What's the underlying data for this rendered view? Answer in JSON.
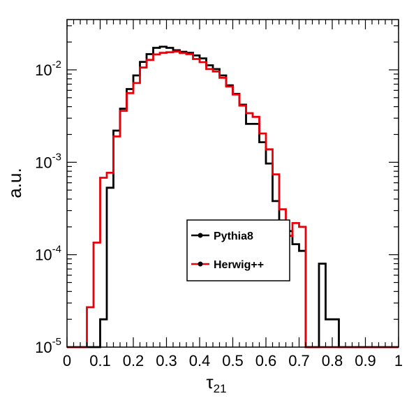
{
  "chart_data": {
    "type": "line",
    "style": "step-histogram",
    "title": "",
    "xlabel": "τ",
    "xlabel_subscript": "21",
    "ylabel": "a.u.",
    "xlim": [
      0,
      1
    ],
    "ylim": [
      1e-05,
      0.035
    ],
    "yscale": "log",
    "grid": false,
    "legend_position": "center",
    "x_ticks": [
      "0",
      "0.1",
      "0.2",
      "0.3",
      "0.4",
      "0.5",
      "0.6",
      "0.7",
      "0.8",
      "0.9",
      "1"
    ],
    "y_ticks": [
      {
        "base": "10",
        "exp": "-5"
      },
      {
        "base": "10",
        "exp": "-4"
      },
      {
        "base": "10",
        "exp": "-3"
      },
      {
        "base": "10",
        "exp": "-2"
      }
    ],
    "bin_edges": [
      0.0,
      0.02,
      0.04,
      0.06,
      0.08,
      0.1,
      0.12,
      0.14,
      0.16,
      0.18,
      0.2,
      0.22,
      0.24,
      0.26,
      0.28,
      0.3,
      0.32,
      0.34,
      0.36,
      0.38,
      0.4,
      0.42,
      0.44,
      0.46,
      0.48,
      0.5,
      0.52,
      0.54,
      0.56,
      0.58,
      0.6,
      0.62,
      0.64,
      0.66,
      0.68,
      0.7,
      0.72,
      0.74,
      0.76,
      0.78,
      0.8,
      0.82,
      0.84,
      0.86,
      0.88,
      0.9,
      0.92,
      0.94,
      0.96,
      0.98,
      1.0
    ],
    "series": [
      {
        "name": "Pythia8",
        "color": "#000000",
        "values": [
          1e-05,
          1e-05,
          1e-05,
          1e-05,
          1e-05,
          2e-05,
          0.00053,
          0.0022,
          0.0038,
          0.0062,
          0.0087,
          0.0122,
          0.0148,
          0.0173,
          0.0178,
          0.0173,
          0.0163,
          0.0157,
          0.0153,
          0.0143,
          0.0133,
          0.0112,
          0.0102,
          0.0087,
          0.0068,
          0.0055,
          0.0042,
          0.0026,
          0.0026,
          0.00165,
          0.00097,
          0.00038,
          0.00021,
          0.00018,
          0.00013,
          0.00011,
          8e-06,
          8e-06,
          8e-05,
          2e-05,
          2e-05,
          1e-05,
          1e-05,
          1e-05,
          1e-05,
          1e-05,
          1e-05,
          1e-05,
          1e-05,
          1e-05
        ]
      },
      {
        "name": "Herwig++",
        "color": "#e8000b",
        "values": [
          1e-05,
          1e-05,
          1e-05,
          2.7e-05,
          0.000135,
          0.00068,
          0.00077,
          0.0019,
          0.0036,
          0.0056,
          0.0072,
          0.0106,
          0.0128,
          0.0147,
          0.0153,
          0.0155,
          0.0158,
          0.0152,
          0.0148,
          0.0131,
          0.0121,
          0.0102,
          0.0096,
          0.0082,
          0.0066,
          0.0054,
          0.0041,
          0.0034,
          0.0031,
          0.00205,
          0.00138,
          0.00074,
          0.00031,
          0.00016,
          0.00022,
          0.0002,
          8e-06,
          8e-06,
          1e-05,
          1e-05,
          1e-05,
          1e-05,
          1e-05,
          1e-05,
          1e-05,
          1e-05,
          1e-05,
          1e-05,
          1e-05,
          1e-05
        ]
      }
    ]
  }
}
